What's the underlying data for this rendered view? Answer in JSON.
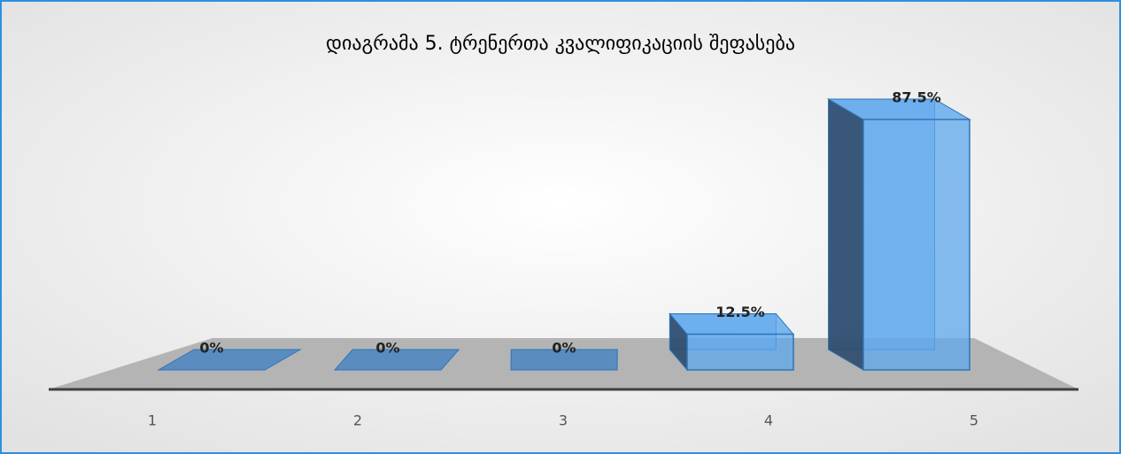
{
  "chart_data": {
    "type": "bar3d",
    "title": "დიაგრამა 5. ტრენერთა კვალიფიკაციის შეფასება",
    "categories": [
      "1",
      "2",
      "3",
      "4",
      "5"
    ],
    "values": [
      0,
      0,
      0,
      12.5,
      87.5
    ],
    "value_labels": [
      "0%",
      "0%",
      "0%",
      "12.5%",
      "87.5%"
    ],
    "color": "#5fa8ee"
  }
}
